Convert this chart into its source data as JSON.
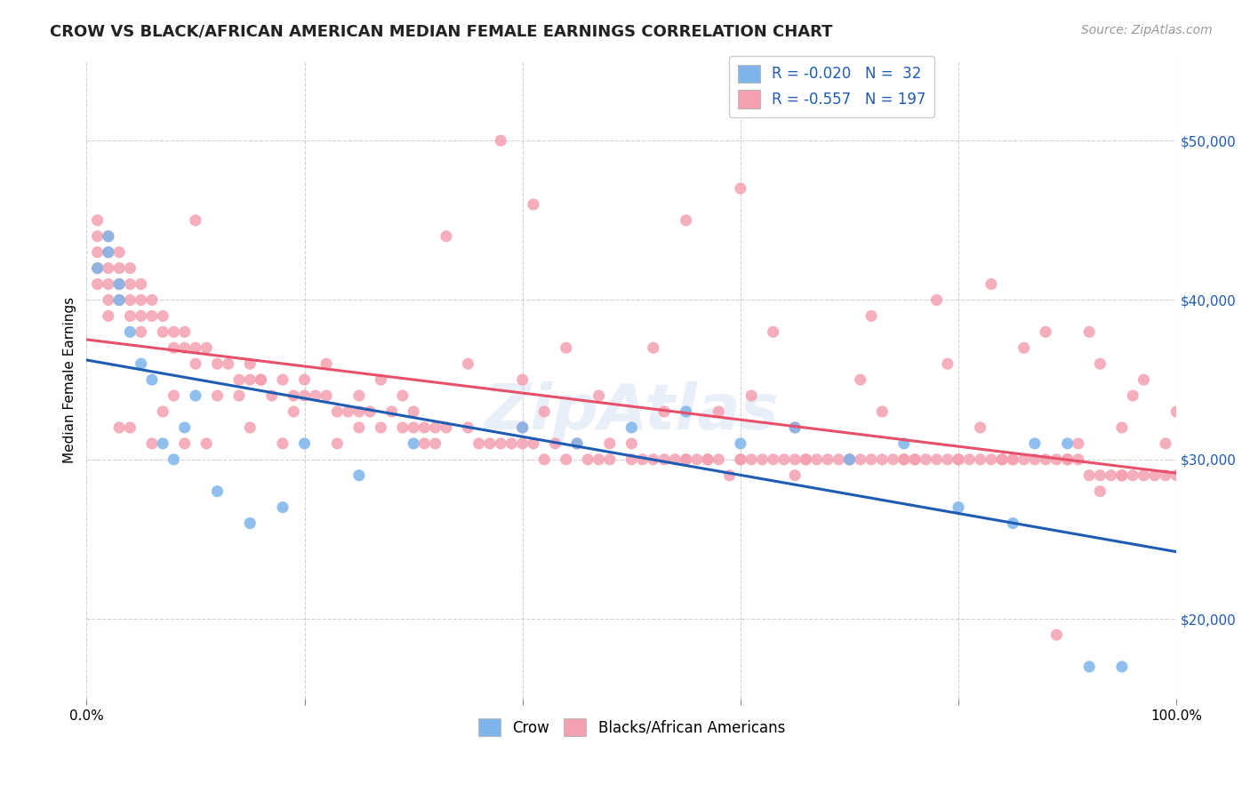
{
  "title": "CROW VS BLACK/AFRICAN AMERICAN MEDIAN FEMALE EARNINGS CORRELATION CHART",
  "source": "Source: ZipAtlas.com",
  "ylabel": "Median Female Earnings",
  "yticks": [
    20000,
    30000,
    40000,
    50000
  ],
  "ytick_labels": [
    "$20,000",
    "$30,000",
    "$40,000",
    "$50,000"
  ],
  "crow_color": "#7eb4ea",
  "black_color": "#f4a0b0",
  "crow_line_color": "#1e5bb5",
  "black_line_color": "#e8506a",
  "background_color": "#ffffff",
  "watermark": "ZipAtlas",
  "xmin": 0.0,
  "xmax": 1.0,
  "ymin": 15000,
  "ymax": 55000,
  "crow_x": [
    0.01,
    0.02,
    0.02,
    0.03,
    0.03,
    0.04,
    0.05,
    0.06,
    0.07,
    0.08,
    0.09,
    0.1,
    0.12,
    0.15,
    0.18,
    0.2,
    0.25,
    0.3,
    0.4,
    0.45,
    0.5,
    0.55,
    0.6,
    0.65,
    0.7,
    0.75,
    0.8,
    0.85,
    0.87,
    0.9,
    0.92,
    0.95
  ],
  "crow_y": [
    42000,
    43000,
    44000,
    41000,
    40000,
    38000,
    36000,
    35000,
    31000,
    30000,
    32000,
    34000,
    28000,
    26000,
    27000,
    31000,
    29000,
    31000,
    32000,
    31000,
    32000,
    33000,
    31000,
    32000,
    30000,
    31000,
    27000,
    26000,
    31000,
    31000,
    17000,
    17000
  ],
  "black_x": [
    0.01,
    0.01,
    0.01,
    0.01,
    0.01,
    0.02,
    0.02,
    0.02,
    0.02,
    0.02,
    0.02,
    0.03,
    0.03,
    0.03,
    0.03,
    0.04,
    0.04,
    0.04,
    0.04,
    0.05,
    0.05,
    0.05,
    0.05,
    0.06,
    0.06,
    0.07,
    0.07,
    0.08,
    0.08,
    0.09,
    0.09,
    0.1,
    0.1,
    0.11,
    0.12,
    0.13,
    0.14,
    0.15,
    0.15,
    0.16,
    0.17,
    0.18,
    0.19,
    0.2,
    0.2,
    0.21,
    0.22,
    0.23,
    0.24,
    0.25,
    0.25,
    0.26,
    0.27,
    0.28,
    0.29,
    0.3,
    0.3,
    0.31,
    0.32,
    0.33,
    0.35,
    0.36,
    0.37,
    0.38,
    0.4,
    0.4,
    0.41,
    0.42,
    0.43,
    0.44,
    0.45,
    0.46,
    0.47,
    0.48,
    0.5,
    0.5,
    0.51,
    0.52,
    0.53,
    0.54,
    0.55,
    0.55,
    0.56,
    0.57,
    0.58,
    0.59,
    0.6,
    0.6,
    0.61,
    0.62,
    0.63,
    0.64,
    0.65,
    0.65,
    0.66,
    0.67,
    0.68,
    0.69,
    0.7,
    0.7,
    0.71,
    0.72,
    0.73,
    0.74,
    0.75,
    0.75,
    0.76,
    0.77,
    0.78,
    0.79,
    0.8,
    0.8,
    0.81,
    0.82,
    0.83,
    0.84,
    0.85,
    0.85,
    0.86,
    0.87,
    0.88,
    0.89,
    0.9,
    0.9,
    0.91,
    0.92,
    0.93,
    0.94,
    0.95,
    0.95,
    0.96,
    0.97,
    0.98,
    0.99,
    1.0,
    0.38,
    0.6,
    0.41,
    0.55,
    0.1,
    0.33,
    0.44,
    0.52,
    0.63,
    0.72,
    0.78,
    0.83,
    0.88,
    0.93,
    0.97,
    0.12,
    0.07,
    0.08,
    0.16,
    0.22,
    0.27,
    0.35,
    0.14,
    0.19,
    0.29,
    0.4,
    0.47,
    0.58,
    0.65,
    0.73,
    0.82,
    0.91,
    0.95,
    0.99,
    0.03,
    0.06,
    0.11,
    0.18,
    0.25,
    0.32,
    0.42,
    0.53,
    0.61,
    0.71,
    0.79,
    0.86,
    0.92,
    0.96,
    1.0,
    0.04,
    0.09,
    0.15,
    0.23,
    0.31,
    0.39,
    0.48,
    0.57,
    0.66,
    0.76,
    0.84,
    0.89,
    0.93
  ],
  "black_y": [
    44000,
    45000,
    43000,
    42000,
    41000,
    44000,
    43000,
    42000,
    41000,
    40000,
    39000,
    43000,
    42000,
    41000,
    40000,
    42000,
    41000,
    40000,
    39000,
    41000,
    40000,
    39000,
    38000,
    40000,
    39000,
    39000,
    38000,
    38000,
    37000,
    38000,
    37000,
    37000,
    36000,
    37000,
    36000,
    36000,
    35000,
    35000,
    36000,
    35000,
    34000,
    35000,
    34000,
    34000,
    35000,
    34000,
    34000,
    33000,
    33000,
    34000,
    33000,
    33000,
    32000,
    33000,
    32000,
    33000,
    32000,
    32000,
    31000,
    32000,
    32000,
    31000,
    31000,
    31000,
    32000,
    31000,
    31000,
    30000,
    31000,
    30000,
    31000,
    30000,
    30000,
    30000,
    31000,
    30000,
    30000,
    30000,
    30000,
    30000,
    30000,
    30000,
    30000,
    30000,
    30000,
    29000,
    30000,
    30000,
    30000,
    30000,
    30000,
    30000,
    30000,
    29000,
    30000,
    30000,
    30000,
    30000,
    30000,
    30000,
    30000,
    30000,
    30000,
    30000,
    30000,
    30000,
    30000,
    30000,
    30000,
    30000,
    30000,
    30000,
    30000,
    30000,
    30000,
    30000,
    30000,
    30000,
    30000,
    30000,
    30000,
    30000,
    30000,
    30000,
    30000,
    29000,
    29000,
    29000,
    29000,
    29000,
    29000,
    29000,
    29000,
    29000,
    29000,
    50000,
    47000,
    46000,
    45000,
    45000,
    44000,
    37000,
    37000,
    38000,
    39000,
    40000,
    41000,
    38000,
    36000,
    35000,
    34000,
    33000,
    34000,
    35000,
    36000,
    35000,
    36000,
    34000,
    33000,
    34000,
    35000,
    34000,
    33000,
    32000,
    33000,
    32000,
    31000,
    32000,
    31000,
    32000,
    31000,
    31000,
    31000,
    32000,
    32000,
    33000,
    33000,
    34000,
    35000,
    36000,
    37000,
    38000,
    34000,
    33000,
    32000,
    31000,
    32000,
    31000,
    31000,
    31000,
    31000,
    30000,
    30000,
    30000,
    30000,
    19000,
    28000
  ]
}
